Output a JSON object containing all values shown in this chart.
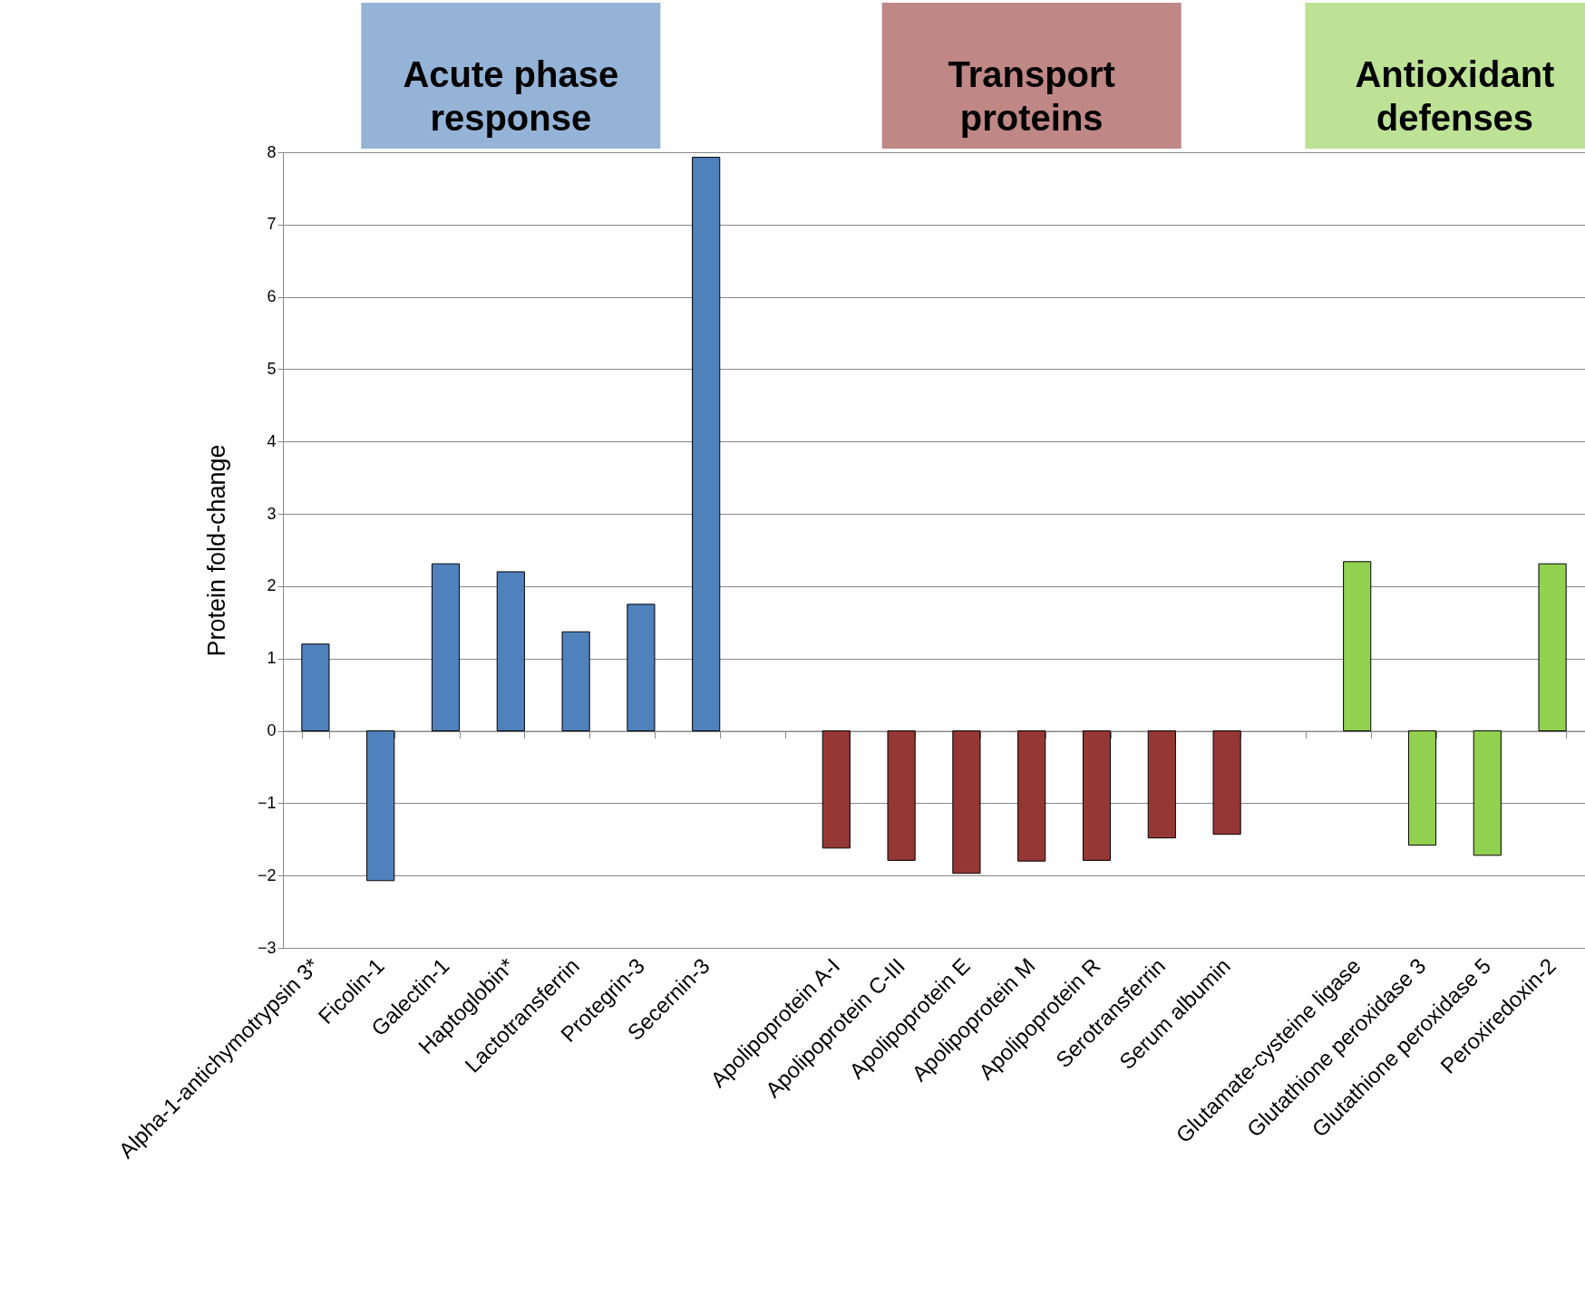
{
  "chart_data": {
    "type": "bar",
    "ylabel": "Protein fold-change",
    "categories": [
      "Alpha-1-antichymotrypsin 3*",
      "Ficolin-1",
      "Galectin-1",
      "Haptoglobin*",
      "Lactotransferrin",
      "Protegrin-3",
      "Secernin-3",
      null,
      "Apolipoprotein A-I",
      "Apolipoprotein C-III",
      "Apolipoprotein E",
      "Apolipoprotein M",
      "Apolipoprotein R",
      "Serotransferrin",
      "Serum albumin",
      null,
      "Glutamate-cysteine ligase",
      "Glutathione peroxidase 3",
      "Glutathione peroxidase 5",
      "Peroxiredoxin-2"
    ],
    "series": [
      {
        "color": "#4f81bd",
        "values": [
          1.2,
          -2.07,
          2.31,
          2.2,
          1.37,
          1.75,
          7.93,
          null,
          null,
          null,
          null,
          null,
          null,
          null,
          null,
          null,
          null,
          null,
          null,
          null
        ]
      },
      {
        "color": "#953735",
        "values": [
          null,
          null,
          null,
          null,
          null,
          null,
          null,
          null,
          -1.62,
          -1.79,
          -1.97,
          -1.8,
          -1.79,
          -1.48,
          -1.43,
          null,
          null,
          null,
          null,
          null
        ]
      },
      {
        "color": "#92d050",
        "values": [
          null,
          null,
          null,
          null,
          null,
          null,
          null,
          null,
          null,
          null,
          null,
          null,
          null,
          null,
          null,
          null,
          2.34,
          -1.58,
          -1.72,
          2.31
        ]
      }
    ],
    "annotations": [
      "Acute phase response",
      "Transport proteins",
      "Antioxidant defenses"
    ],
    "ylim": [
      -3,
      8
    ],
    "yticks": [
      -3,
      -2,
      -1,
      0,
      1,
      2,
      3,
      4,
      5,
      6,
      7,
      8
    ],
    "grid": "y"
  }
}
